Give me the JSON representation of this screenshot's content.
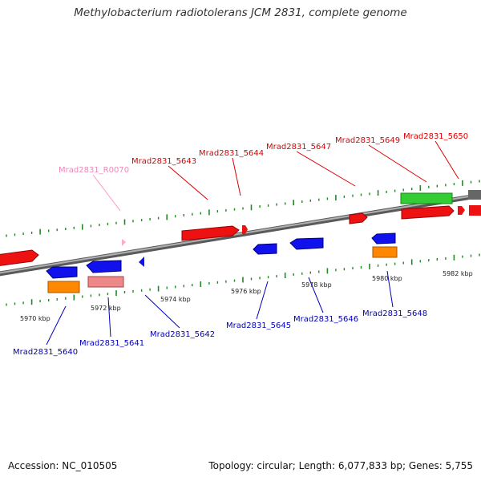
{
  "title": "Methylobacterium radiotolerans JCM 2831, complete genome",
  "footer": {
    "accession": "Accession: NC_010505",
    "summary": "Topology: circular; Length: 6,077,833 bp; Genes: 5,755"
  },
  "colors": {
    "forward_label": "#dd0000",
    "reverse_label": "#0000bb",
    "rna_label": "#ee88bb",
    "backbone": "#888888",
    "tick": "#228822"
  },
  "kbp_labels": [
    "5970 kbp",
    "5972 kbp",
    "5974 kbp",
    "5976 kbp",
    "5978 kbp",
    "5980 kbp",
    "5982 kbp"
  ],
  "genes_top": [
    {
      "name": "Mrad2831_R0070",
      "type": "rna"
    },
    {
      "name": "Mrad2831_5643",
      "type": "forward"
    },
    {
      "name": "Mrad2831_5644",
      "type": "forward"
    },
    {
      "name": "Mrad2831_5647",
      "type": "forward"
    },
    {
      "name": "Mrad2831_5649",
      "type": "forward"
    },
    {
      "name": "Mrad2831_5650",
      "type": "forward"
    }
  ],
  "genes_bottom": [
    {
      "name": "Mrad2831_5640",
      "type": "reverse"
    },
    {
      "name": "Mrad2831_5641",
      "type": "reverse"
    },
    {
      "name": "Mrad2831_5642",
      "type": "reverse"
    },
    {
      "name": "Mrad2831_5645",
      "type": "reverse"
    },
    {
      "name": "Mrad2831_5646",
      "type": "reverse"
    },
    {
      "name": "Mrad2831_5648",
      "type": "reverse"
    }
  ]
}
